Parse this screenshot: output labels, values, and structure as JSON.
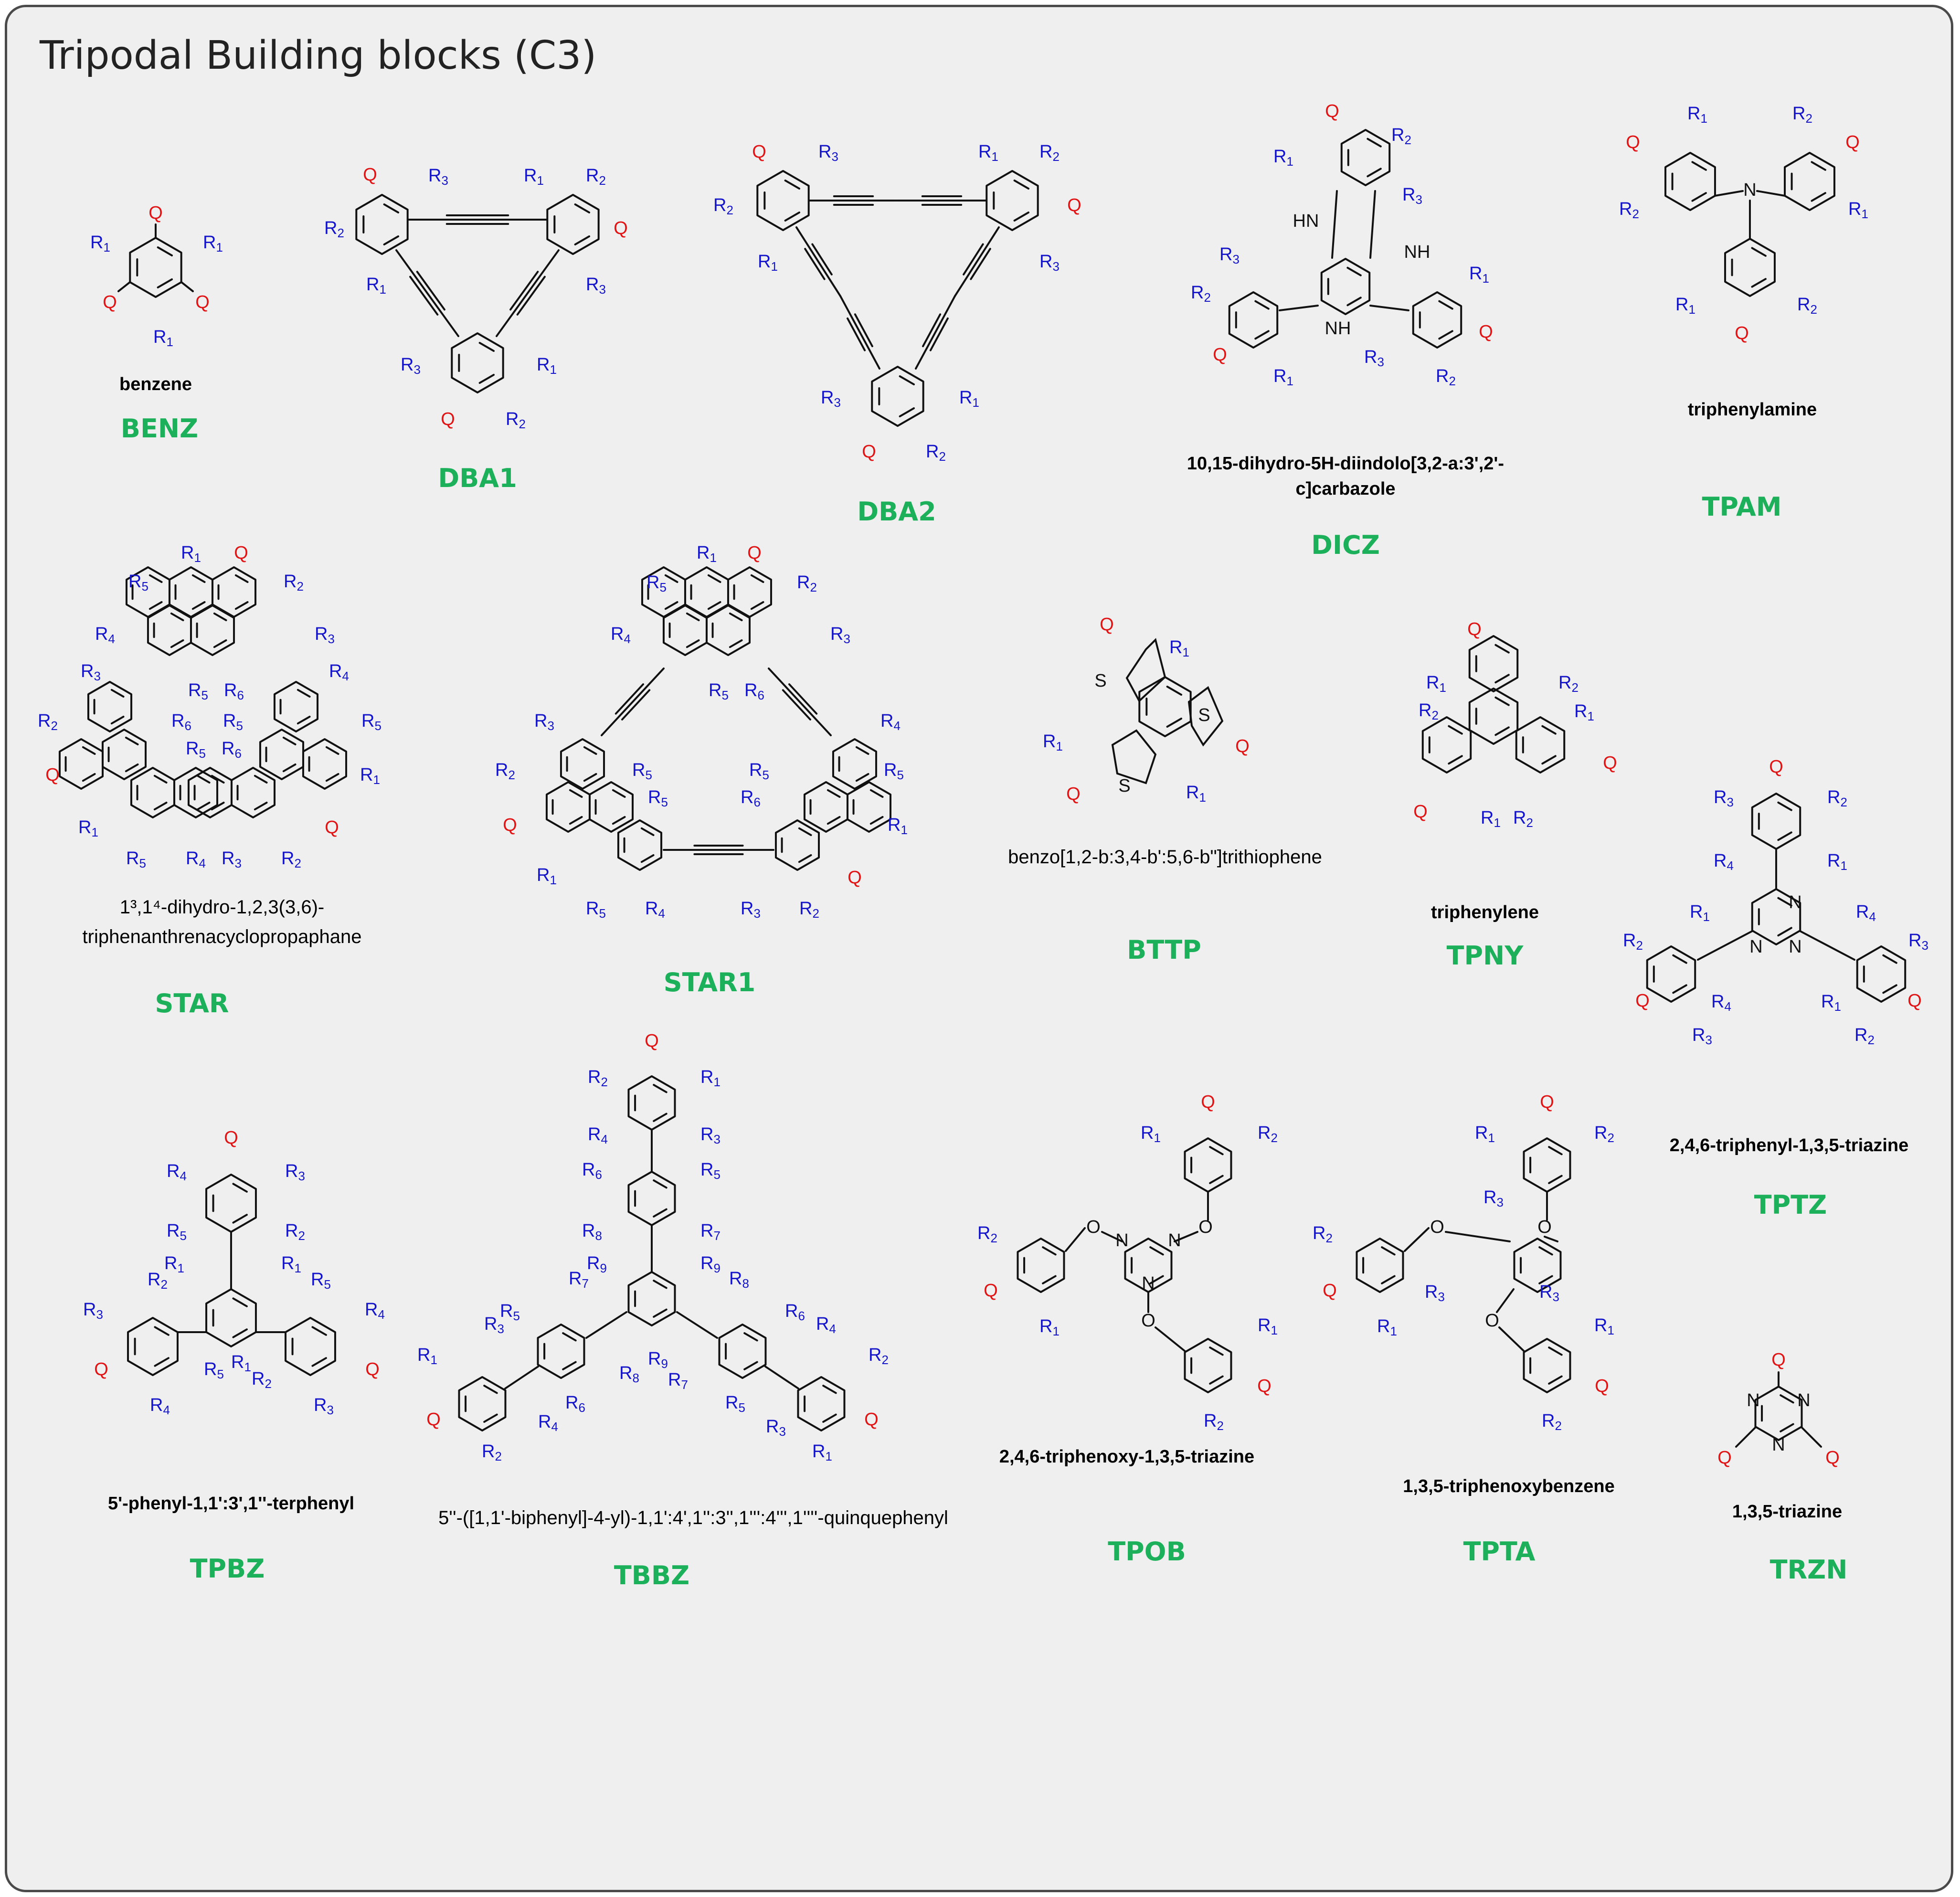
{
  "title": "Tripodal Building blocks (C3)",
  "colors": {
    "code": "#1db05a",
    "r_group": "#1414c8",
    "q_group": "#e01414",
    "bond": "#111111",
    "background": "#efefef"
  },
  "atom_labels": {
    "Q": "Q",
    "R1": "R1",
    "R2": "R2",
    "R3": "R3",
    "R4": "R4",
    "R5": "R5",
    "R6": "R6",
    "R7": "R7",
    "R8": "R8",
    "R9": "R9",
    "N": "N",
    "O": "O",
    "S": "S",
    "NH": "NH",
    "HN": "HN"
  },
  "blocks": [
    {
      "code": "BENZ",
      "name": "benzene"
    },
    {
      "code": "DBA1",
      "name": ""
    },
    {
      "code": "DBA2",
      "name": ""
    },
    {
      "code": "DICZ",
      "name_line1": "10,15-dihydro-5H-diindolo[3,2-a:3',2'-",
      "name_line2": "c]carbazole"
    },
    {
      "code": "TPAM",
      "name": "triphenylamine"
    },
    {
      "code": "STAR",
      "name_line1": "1³,1⁴-dihydro-1,2,3(3,6)-",
      "name_line2": "triphenanthrenacyclopropaphane"
    },
    {
      "code": "STAR1",
      "name": ""
    },
    {
      "code": "BTTP",
      "name": "benzo[1,2-b:3,4-b':5,6-b\"]trithiophene"
    },
    {
      "code": "TPNY",
      "name": "triphenylene"
    },
    {
      "code": "TPTZ",
      "name": "2,4,6-triphenyl-1,3,5-triazine"
    },
    {
      "code": "TPBZ",
      "name": "5'-phenyl-1,1':3',1''-terphenyl"
    },
    {
      "code": "TBBZ",
      "name": "5''-([1,1'-biphenyl]-4-yl)-1,1':4',1'':3'',1''':4''',1''''-quinquephenyl"
    },
    {
      "code": "TPOB",
      "name": "2,4,6-triphenoxy-1,3,5-triazine"
    },
    {
      "code": "TPTA",
      "name": "1,3,5-triphenoxybenzene"
    },
    {
      "code": "TRZN",
      "name": "1,3,5-triazine"
    }
  ]
}
